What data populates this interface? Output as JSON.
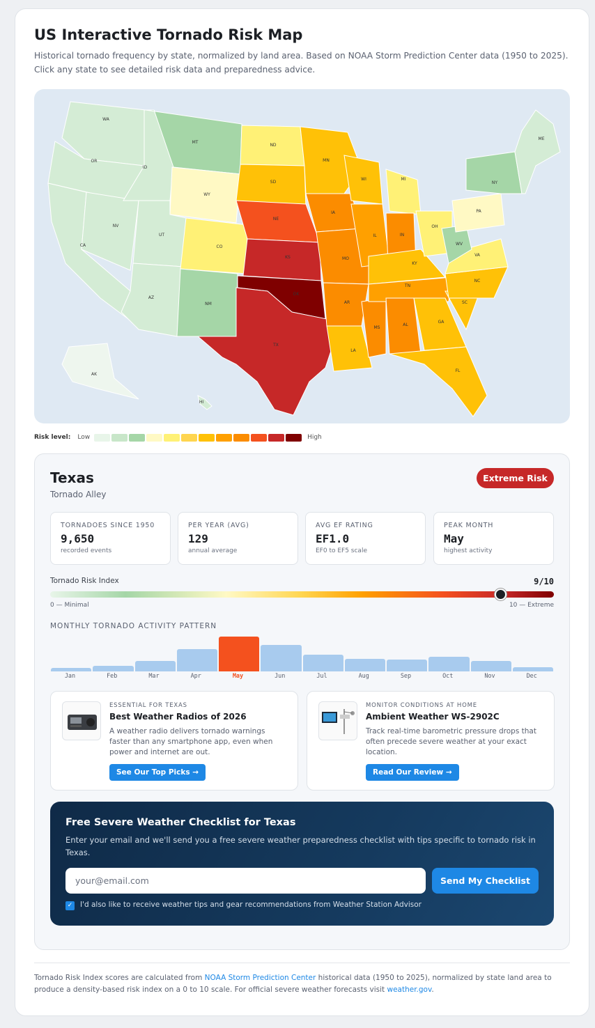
{
  "header": {
    "title": "US Interactive Tornado Risk Map",
    "subtitle": "Historical tornado frequency by state, normalized by land area. Based on NOAA Storm Prediction Center data (1950 to 2025). Click any state to see detailed risk data and preparedness advice."
  },
  "map": {
    "labels": [
      "WA",
      "OR",
      "CA",
      "NV",
      "ID",
      "MT",
      "WY",
      "UT",
      "AZ",
      "CO",
      "NM",
      "ND",
      "SD",
      "NE",
      "KS",
      "OK",
      "TX",
      "MN",
      "IA",
      "MO",
      "AR",
      "LA",
      "WI",
      "IL",
      "MS",
      "MI",
      "IN",
      "KY",
      "TN",
      "AL",
      "OH",
      "GA",
      "FL",
      "SC",
      "NC",
      "VA",
      "WV",
      "PA",
      "NY",
      "ME",
      "AK",
      "HI"
    ]
  },
  "legend": {
    "label": "Risk level:",
    "low": "Low",
    "high": "High",
    "colors": [
      "#e8f5e9",
      "#c8e6c9",
      "#a5d6a7",
      "#fff9c4",
      "#fff176",
      "#ffd54f",
      "#ffc107",
      "#ffa000",
      "#fb8c00",
      "#f4511e",
      "#c62828",
      "#7f0000"
    ]
  },
  "detail": {
    "state": "Texas",
    "region": "Tornado Alley",
    "risk_badge": "Extreme Risk",
    "stats": [
      {
        "key": "TORNADOES SINCE 1950",
        "value": "9,650",
        "sub": "recorded events"
      },
      {
        "key": "PER YEAR (AVG)",
        "value": "129",
        "sub": "annual average"
      },
      {
        "key": "AVG EF RATING",
        "value": "EF1.0",
        "sub": "EF0 to EF5 scale"
      },
      {
        "key": "PEAK MONTH",
        "value": "May",
        "sub": "highest activity"
      }
    ],
    "index": {
      "label": "Tornado Risk Index",
      "value_text": "9/10",
      "value": 9,
      "min_label": "0 — Minimal",
      "max_label": "10 — Extreme"
    },
    "monthly": {
      "label": "MONTHLY TORNADO ACTIVITY PATTERN",
      "months": [
        "Jan",
        "Feb",
        "Mar",
        "Apr",
        "May",
        "Jun",
        "Jul",
        "Aug",
        "Sep",
        "Oct",
        "Nov",
        "Dec"
      ],
      "relative": [
        0.1,
        0.16,
        0.3,
        0.64,
        1.0,
        0.76,
        0.48,
        0.36,
        0.35,
        0.42,
        0.3,
        0.13
      ],
      "peak_index": 4
    }
  },
  "promos": [
    {
      "kicker": "ESSENTIAL FOR TEXAS",
      "title": "Best Weather Radios of 2026",
      "desc": "A weather radio delivers tornado warnings faster than any smartphone app, even when power and internet are out.",
      "button": "See Our Top Picks →"
    },
    {
      "kicker": "MONITOR CONDITIONS AT HOME",
      "title": "Ambient Weather WS-2902C",
      "desc": "Track real-time barometric pressure drops that often precede severe weather at your exact location.",
      "button": "Read Our Review →"
    }
  ],
  "cta": {
    "title": "Free Severe Weather Checklist for Texas",
    "desc": "Enter your email and we'll send you a free severe weather preparedness checklist with tips specific to tornado risk in Texas.",
    "placeholder": "your@email.com",
    "button": "Send My Checklist",
    "checkbox_label": "I'd also like to receive weather tips and gear recommendations from Weather Station Advisor",
    "checked": true
  },
  "footer": {
    "t1": "Tornado Risk Index scores are calculated from ",
    "link1": "NOAA Storm Prediction Center",
    "t2": " historical data (1950 to 2025), normalized by state land area to produce a density-based risk index on a 0 to 10 scale. For official severe weather forecasts visit ",
    "link2": "weather.gov",
    "t3": "."
  }
}
